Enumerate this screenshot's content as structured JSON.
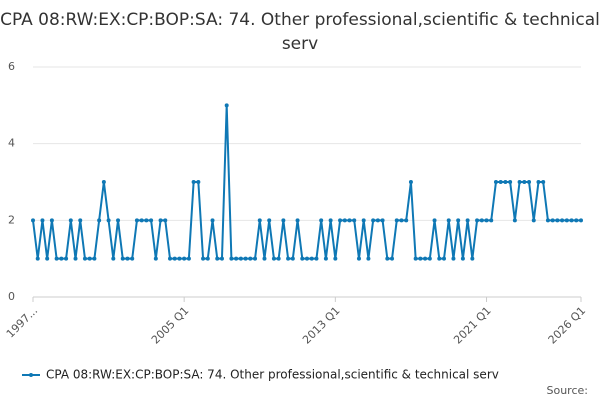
{
  "chart_data": {
    "type": "line",
    "title": "CPA 08:RW:EX:CP:BOP:SA: 74. Other professional,scientific & technical serv",
    "categories": [
      "1997...",
      null,
      null,
      null,
      null,
      null,
      null,
      null,
      null,
      null,
      null,
      null,
      null,
      null,
      null,
      null,
      null,
      null,
      null,
      null,
      null,
      null,
      null,
      null,
      null,
      null,
      null,
      null,
      null,
      null,
      null,
      null,
      "2005 Q1",
      null,
      null,
      null,
      null,
      null,
      null,
      null,
      null,
      null,
      null,
      null,
      null,
      null,
      null,
      null,
      null,
      null,
      null,
      null,
      null,
      null,
      null,
      null,
      null,
      null,
      null,
      null,
      null,
      null,
      null,
      null,
      "2013 Q1",
      null,
      null,
      null,
      null,
      null,
      null,
      null,
      null,
      null,
      null,
      null,
      null,
      null,
      null,
      null,
      null,
      null,
      null,
      null,
      null,
      null,
      null,
      null,
      null,
      null,
      null,
      null,
      null,
      null,
      null,
      null,
      "2021 Q1",
      null,
      null,
      null,
      null,
      null,
      null,
      null,
      null,
      null,
      null,
      null,
      null,
      null,
      null,
      null,
      null,
      null,
      null,
      null,
      "2026 Q1"
    ],
    "series": [
      {
        "name": "CPA 08:RW:EX:CP:BOP:SA: 74. Other professional,scientific & technical serv",
        "color": "#0f78b5",
        "values": [
          2,
          1,
          2,
          1,
          2,
          1,
          1,
          1,
          2,
          1,
          2,
          1,
          1,
          1,
          2,
          3,
          2,
          1,
          2,
          1,
          1,
          1,
          2,
          2,
          2,
          2,
          1,
          2,
          2,
          1,
          1,
          1,
          1,
          1,
          3,
          3,
          1,
          1,
          2,
          1,
          1,
          5,
          1,
          1,
          1,
          1,
          1,
          1,
          2,
          1,
          2,
          1,
          1,
          2,
          1,
          1,
          2,
          1,
          1,
          1,
          1,
          2,
          1,
          2,
          1,
          2,
          2,
          2,
          2,
          1,
          2,
          1,
          2,
          2,
          2,
          1,
          1,
          2,
          2,
          2,
          3,
          1,
          1,
          1,
          1,
          2,
          1,
          1,
          2,
          1,
          2,
          1,
          2,
          1,
          2,
          2,
          2,
          2,
          3,
          3,
          3,
          3,
          2,
          3,
          3,
          3,
          2,
          3,
          3,
          2,
          2,
          2,
          2,
          2,
          2,
          2,
          2
        ]
      }
    ],
    "ylim": [
      0,
      6
    ],
    "yticks": [
      0,
      2,
      4,
      6
    ],
    "grid": true,
    "source": "Source:"
  }
}
